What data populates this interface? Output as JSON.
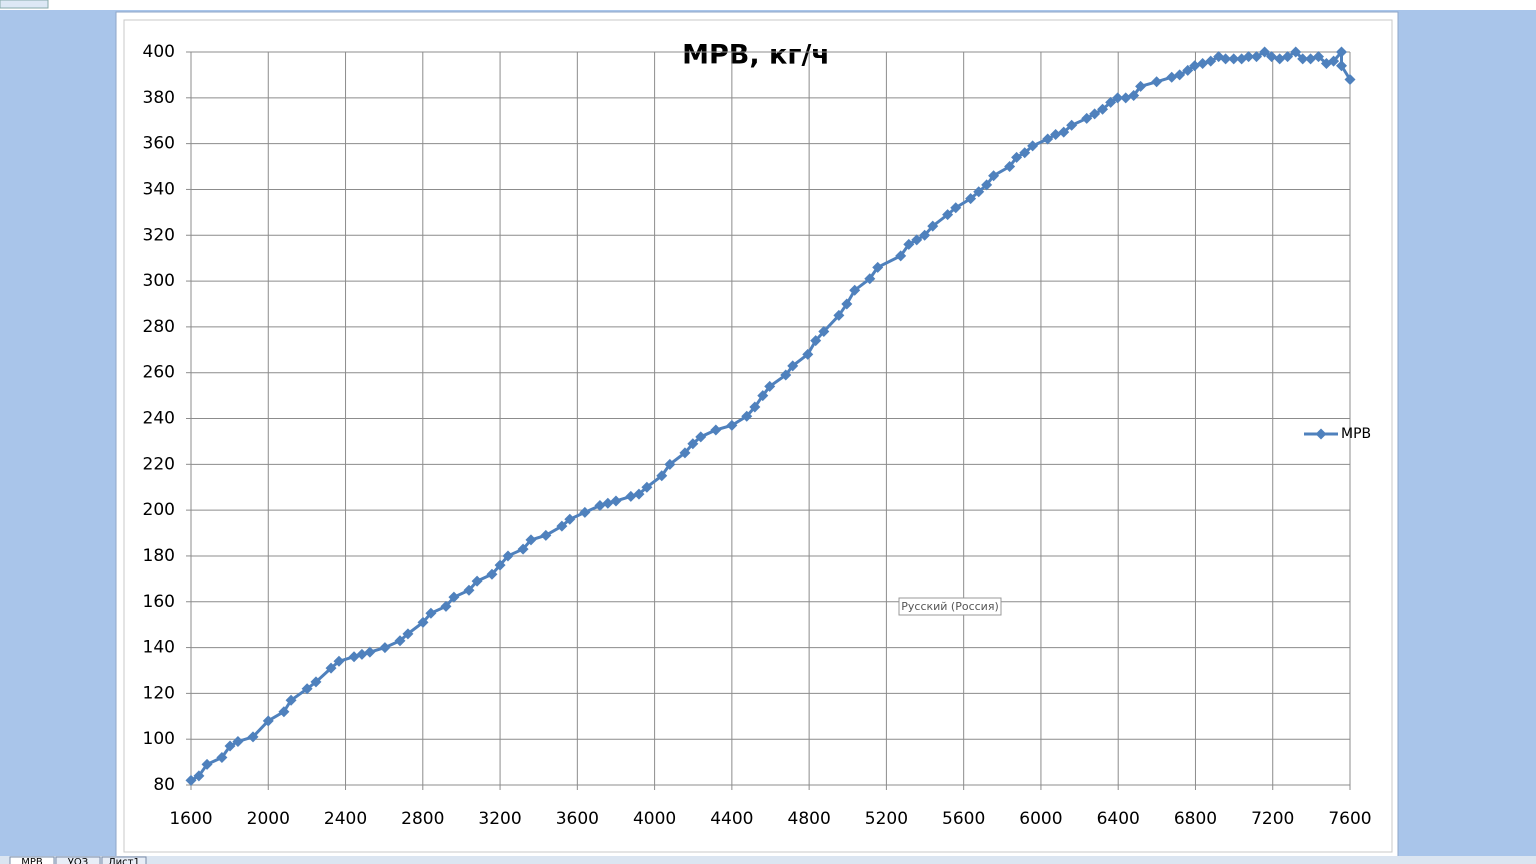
{
  "chart_data": {
    "type": "line",
    "title": "МРВ, кг/ч",
    "x": [
      1600,
      1641,
      1683,
      1760,
      1802,
      1843,
      1921,
      2000,
      2081,
      2118,
      2201,
      2247,
      2325,
      2366,
      2444,
      2485,
      2526,
      2604,
      2682,
      2723,
      2801,
      2842,
      2920,
      2961,
      3039,
      3081,
      3158,
      3200,
      3241,
      3319,
      3360,
      3437,
      3520,
      3561,
      3639,
      3717,
      3758,
      3800,
      3877,
      3919,
      3960,
      4037,
      4079,
      4157,
      4198,
      4239,
      4317,
      4400,
      4477,
      4519,
      4560,
      4596,
      4679,
      4715,
      4793,
      4834,
      4876,
      4954,
      4995,
      5036,
      5114,
      5155,
      5274,
      5316,
      5357,
      5398,
      5440,
      5517,
      5559,
      5636,
      5678,
      5719,
      5755,
      5838,
      5874,
      5916,
      5957,
      6035,
      6076,
      6118,
      6159,
      6237,
      6278,
      6319,
      6361,
      6397,
      6439,
      6480,
      6516,
      6599,
      6677,
      6718,
      6760,
      6796,
      6837,
      6879,
      6920,
      6956,
      6998,
      7039,
      7075,
      7116,
      7158,
      7194,
      7236,
      7277,
      7319,
      7355,
      7396,
      7437,
      7478,
      7515,
      7556,
      7556,
      7600
    ],
    "series": [
      {
        "name": "МРВ",
        "color": "#4f81bd",
        "values": [
          82,
          84,
          89,
          92,
          97,
          99,
          101,
          108,
          112,
          117,
          122,
          125,
          131,
          134,
          136,
          137,
          138,
          140,
          143,
          146,
          151,
          155,
          158,
          162,
          165,
          169,
          172,
          176,
          180,
          183,
          187,
          189,
          193,
          196,
          199,
          202,
          203,
          204,
          206,
          207,
          210,
          215,
          220,
          225,
          229,
          232,
          235,
          237,
          241,
          245,
          250,
          254,
          259,
          263,
          268,
          274,
          278,
          285,
          290,
          296,
          301,
          306,
          311,
          316,
          318,
          320,
          324,
          329,
          332,
          336,
          339,
          342,
          346,
          350,
          354,
          356,
          359,
          362,
          364,
          365,
          368,
          371,
          373,
          375,
          378,
          380,
          380,
          381,
          385,
          387,
          389,
          390,
          392,
          394,
          395,
          396,
          398,
          397,
          397,
          397,
          398,
          398,
          400,
          398,
          397,
          398,
          400,
          397,
          397,
          398,
          395,
          396,
          400,
          394,
          388
        ]
      }
    ],
    "xlim": [
      1600,
      7600
    ],
    "xticks": [
      1600,
      2000,
      2400,
      2800,
      3200,
      3600,
      4000,
      4400,
      4800,
      5200,
      5600,
      6000,
      6400,
      6800,
      7200,
      7600
    ],
    "ylim": [
      80,
      400
    ],
    "yticks": [
      80,
      100,
      120,
      140,
      160,
      180,
      200,
      220,
      240,
      260,
      280,
      300,
      320,
      340,
      360,
      380,
      400
    ],
    "grid": true,
    "legend": "right"
  },
  "tooltip": "Русский (Россия)",
  "sheet_tabs": [
    "МРВ",
    "УОЗ",
    "Лист1"
  ]
}
